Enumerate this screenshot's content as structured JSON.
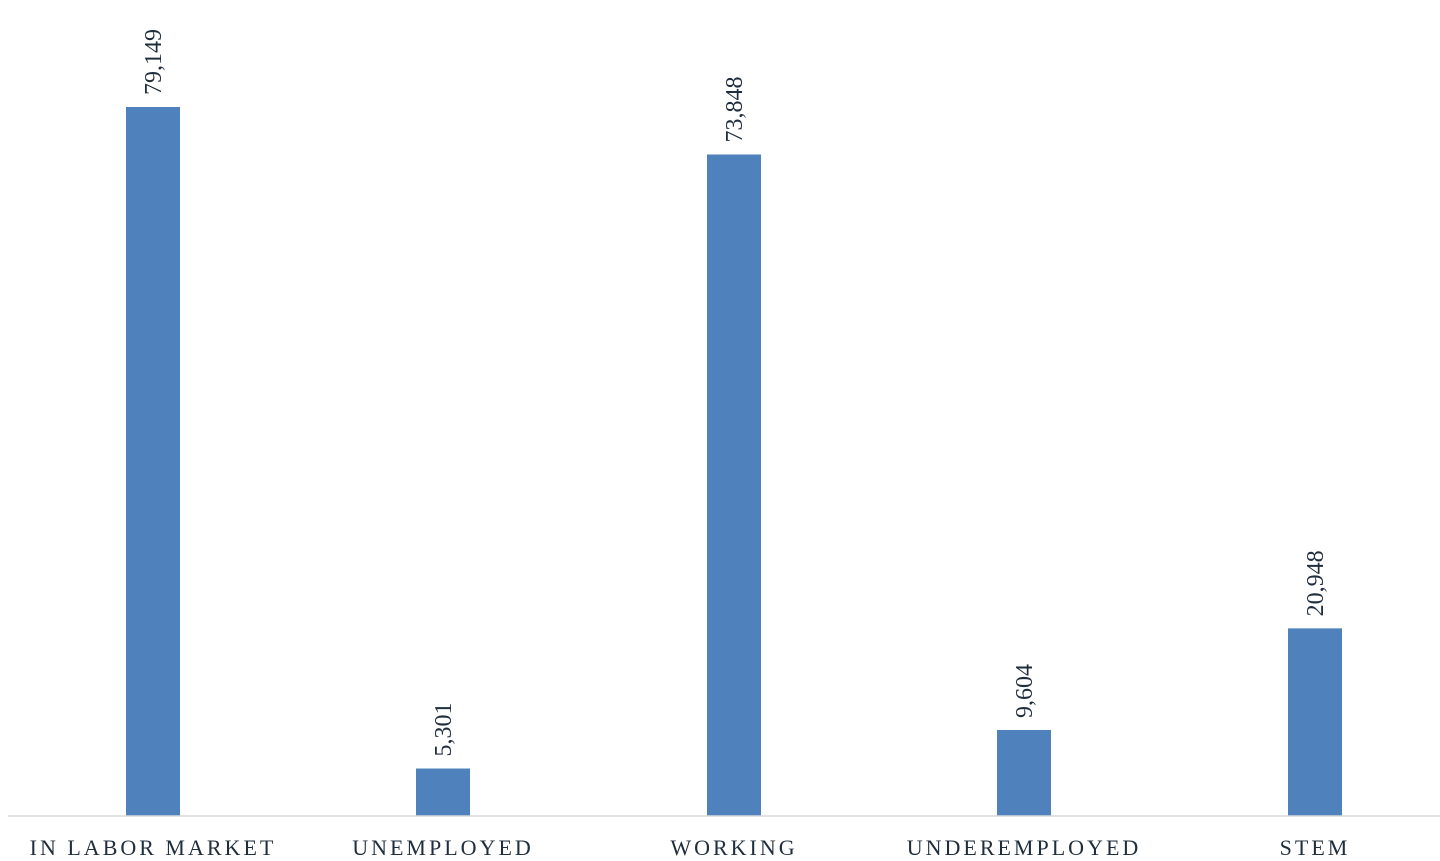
{
  "chart_data": {
    "type": "bar",
    "categories": [
      "IN LABOR MARKET",
      "UNEMPLOYED",
      "WORKING",
      "UNDEREMPLOYED",
      "STEM"
    ],
    "values": [
      79149,
      5301,
      73848,
      9604,
      20948
    ],
    "data_labels": [
      "79,149",
      "5,301",
      "73,848",
      "9,604",
      "20,948"
    ],
    "ylim": [
      0,
      79149
    ],
    "bar_color": "#4f81bd",
    "axis_color": "#d9d9d9",
    "text_color": "#1f2d3d",
    "grid": false,
    "legend": "none",
    "title": "",
    "xlabel": "",
    "ylabel": ""
  }
}
